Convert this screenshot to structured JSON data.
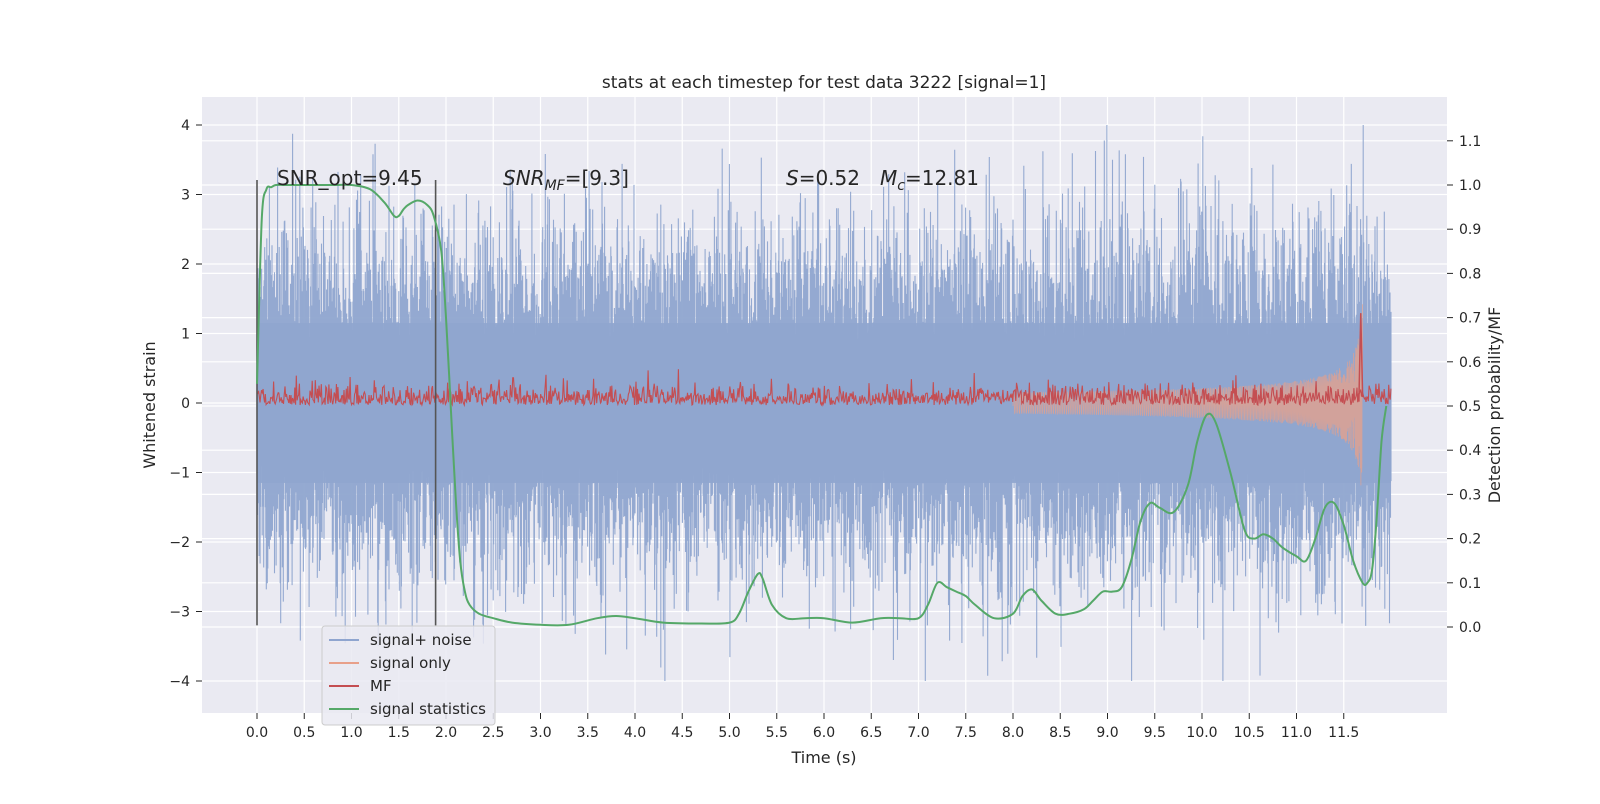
{
  "chart_data": {
    "type": "line",
    "title": "stats at each timestep for test data 3222 [signal=1]",
    "xlabel": "Time (s)",
    "ylabel": "Whitened strain",
    "y2label": "Detection probability/MF",
    "xlim": [
      -0.6,
      12.6
    ],
    "ylim": [
      -4.45,
      4.4
    ],
    "y2lim": [
      -0.2,
      1.18
    ],
    "x_ticks": [
      "0.0",
      "0.5",
      "1.0",
      "1.5",
      "2.0",
      "2.5",
      "3.0",
      "3.5",
      "4.0",
      "4.5",
      "5.0",
      "5.5",
      "6.0",
      "6.5",
      "7.0",
      "7.5",
      "8.0",
      "8.5",
      "9.0",
      "9.5",
      "10.0",
      "10.5",
      "11.0",
      "11.5"
    ],
    "y_ticks": [
      "4",
      "3",
      "2",
      "1",
      "0",
      "−1",
      "−2",
      "−3",
      "−4"
    ],
    "y2_ticks": [
      "1.1",
      "1.0",
      "0.9",
      "0.8",
      "0.7",
      "0.6",
      "0.5",
      "0.4",
      "0.3",
      "0.2",
      "0.1",
      "0.0"
    ],
    "grid": true,
    "legend_position": "lower-left",
    "annotations": {
      "snr_opt": "SNR_opt=9.45",
      "snr_mf_sym": "SNR",
      "snr_mf_sub": "MF",
      "snr_mf_val": "=[9.3]",
      "s_sym": "S",
      "s_val": "=0.52",
      "mc_sym": "M",
      "mc_sub": "c",
      "mc_val": "=12.81"
    },
    "markers_x": [
      0.0,
      1.89
    ],
    "series": [
      {
        "name": "signal+ noise",
        "color": "#8fa5cf",
        "axis": "left",
        "x_range": [
          0.0,
          12.0
        ],
        "approx_envelope": [
          -2.2,
          2.4
        ],
        "approx_extremes": [
          -4.0,
          4.0
        ]
      },
      {
        "name": "signal only",
        "color": "#e8a08a",
        "axis": "left",
        "x_range": [
          0.0,
          11.7
        ],
        "description_peak_amplitude": 1.6
      },
      {
        "name": "MF",
        "color": "#c44e52",
        "axis": "right",
        "x_range": [
          0.0,
          12.0
        ],
        "approx_baseline": 0.5,
        "approx_band": [
          0.5,
          0.56
        ]
      },
      {
        "name": "signal statistics",
        "color": "#55a868",
        "axis": "right",
        "x": [
          0.0,
          0.05,
          0.1,
          0.15,
          0.2,
          0.3,
          0.5,
          0.8,
          1.0,
          1.2,
          1.35,
          1.45,
          1.5,
          1.55,
          1.6,
          1.7,
          1.8,
          1.87,
          1.95,
          2.0,
          2.05,
          2.1,
          2.15,
          2.2,
          2.25,
          2.35,
          2.5,
          2.7,
          3.0,
          3.3,
          3.6,
          3.8,
          4.0,
          4.3,
          4.7,
          5.0,
          5.1,
          5.2,
          5.3,
          5.35,
          5.45,
          5.6,
          5.8,
          6.0,
          6.3,
          6.6,
          6.8,
          7.0,
          7.1,
          7.2,
          7.3,
          7.4,
          7.5,
          7.6,
          7.8,
          8.0,
          8.1,
          8.2,
          8.3,
          8.45,
          8.6,
          8.75,
          8.85,
          8.95,
          9.05,
          9.15,
          9.25,
          9.35,
          9.45,
          9.55,
          9.7,
          9.85,
          9.95,
          10.05,
          10.15,
          10.3,
          10.45,
          10.55,
          10.65,
          10.75,
          10.85,
          11.0,
          11.1,
          11.2,
          11.3,
          11.4,
          11.5,
          11.6,
          11.7,
          11.75,
          11.8,
          11.85,
          11.9,
          11.95
        ],
        "values": [
          0.55,
          0.92,
          0.99,
          0.995,
          1.0,
          1.0,
          1.0,
          1.0,
          1.0,
          0.99,
          0.96,
          0.93,
          0.93,
          0.945,
          0.955,
          0.965,
          0.955,
          0.93,
          0.85,
          0.7,
          0.5,
          0.3,
          0.15,
          0.08,
          0.05,
          0.03,
          0.02,
          0.01,
          0.005,
          0.005,
          0.02,
          0.025,
          0.02,
          0.01,
          0.008,
          0.01,
          0.03,
          0.08,
          0.12,
          0.11,
          0.05,
          0.02,
          0.02,
          0.02,
          0.01,
          0.02,
          0.02,
          0.02,
          0.05,
          0.1,
          0.09,
          0.08,
          0.07,
          0.05,
          0.02,
          0.03,
          0.07,
          0.085,
          0.06,
          0.03,
          0.03,
          0.04,
          0.06,
          0.08,
          0.08,
          0.09,
          0.15,
          0.24,
          0.28,
          0.27,
          0.26,
          0.32,
          0.42,
          0.48,
          0.46,
          0.35,
          0.22,
          0.2,
          0.21,
          0.2,
          0.18,
          0.16,
          0.15,
          0.2,
          0.27,
          0.28,
          0.23,
          0.15,
          0.1,
          0.1,
          0.13,
          0.25,
          0.42,
          0.5
        ]
      }
    ]
  }
}
